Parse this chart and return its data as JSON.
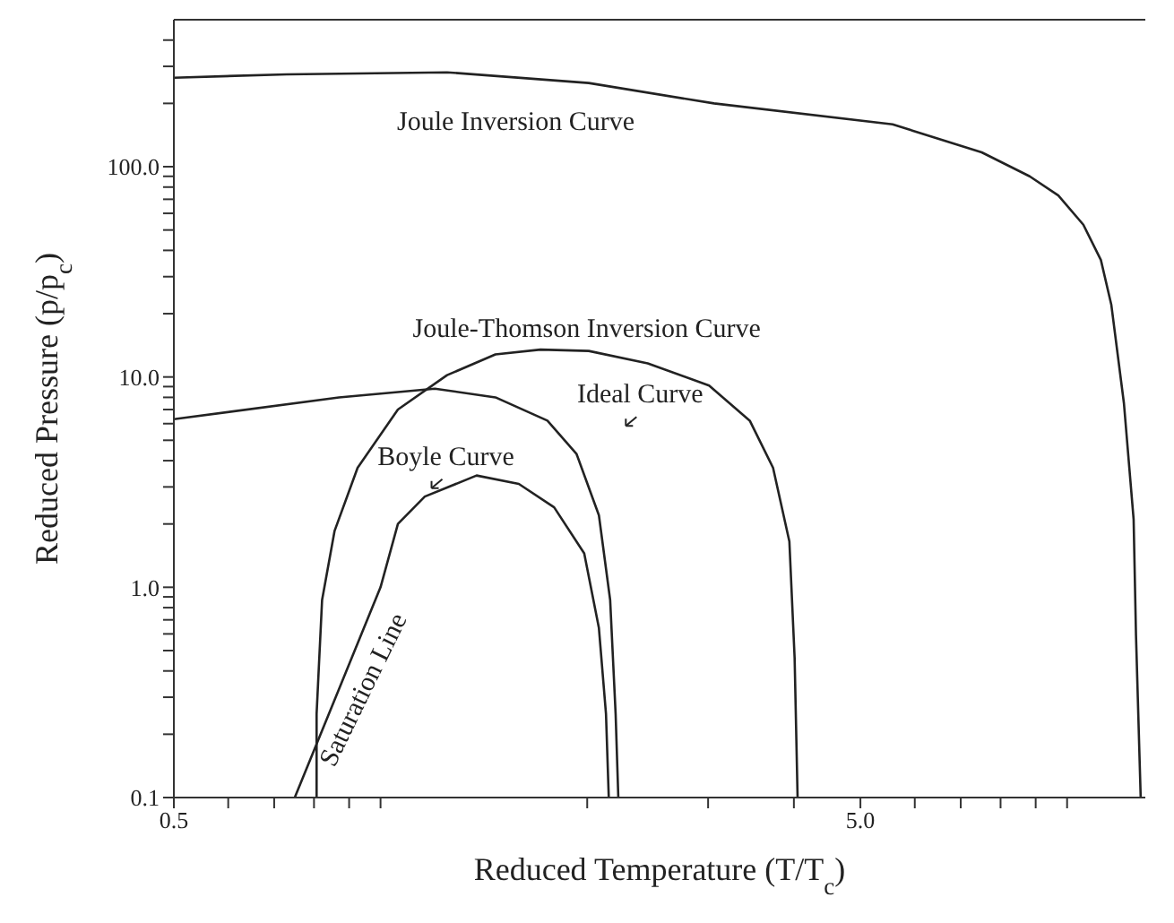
{
  "chart_data": {
    "type": "line",
    "xlabel": "Reduced Temperature (T/T$_{c}$)",
    "ylabel": "Reduced Pressure (p/p$_{c}$)",
    "log": "xy",
    "marker": "none",
    "line_style": "solid",
    "xlim": [
      0.5,
      13
    ],
    "ylim": [
      0.1,
      500
    ],
    "xticks": [
      {
        "value": 0.5,
        "label": "0.5"
      },
      {
        "value": 0.6,
        "label": null
      },
      {
        "value": 0.7,
        "label": null
      },
      {
        "value": 0.8,
        "label": null
      },
      {
        "value": 0.9,
        "label": null
      },
      {
        "value": 1,
        "label": null
      },
      {
        "value": 2,
        "label": null
      },
      {
        "value": 3,
        "label": null
      },
      {
        "value": 4,
        "label": null
      },
      {
        "value": 5,
        "label": "5.0"
      },
      {
        "value": 6,
        "label": null
      },
      {
        "value": 7,
        "label": null
      },
      {
        "value": 8,
        "label": null
      },
      {
        "value": 9,
        "label": null
      },
      {
        "value": 10,
        "label": null
      }
    ],
    "yticks": [
      {
        "value": 0.1,
        "label": "0.1"
      },
      {
        "value": 0.2,
        "label": null
      },
      {
        "value": 0.3,
        "label": null
      },
      {
        "value": 0.4,
        "label": null
      },
      {
        "value": 0.5,
        "label": null
      },
      {
        "value": 0.6,
        "label": null
      },
      {
        "value": 0.7,
        "label": null
      },
      {
        "value": 0.8,
        "label": null
      },
      {
        "value": 0.9,
        "label": null
      },
      {
        "value": 1,
        "label": "1.0"
      },
      {
        "value": 2,
        "label": null
      },
      {
        "value": 3,
        "label": null
      },
      {
        "value": 4,
        "label": null
      },
      {
        "value": 5,
        "label": null
      },
      {
        "value": 6,
        "label": null
      },
      {
        "value": 7,
        "label": null
      },
      {
        "value": 8,
        "label": null
      },
      {
        "value": 9,
        "label": null
      },
      {
        "value": 10,
        "label": "10.0"
      },
      {
        "value": 20,
        "label": null
      },
      {
        "value": 30,
        "label": null
      },
      {
        "value": 40,
        "label": null
      },
      {
        "value": 50,
        "label": null
      },
      {
        "value": 60,
        "label": null
      },
      {
        "value": 70,
        "label": null
      },
      {
        "value": 80,
        "label": null
      },
      {
        "value": 90,
        "label": null
      },
      {
        "value": 100,
        "label": "100.0"
      },
      {
        "value": 200,
        "label": null
      },
      {
        "value": 300,
        "label": null
      },
      {
        "value": 400,
        "label": null
      }
    ],
    "series": [
      {
        "color": "#222222",
        "x": [
          0.5,
          0.73,
          1.25,
          2.01,
          3.06,
          5.57,
          7.51,
          8.82,
          9.71,
          10.56,
          11.2,
          11.6,
          12.1,
          12.5,
          12.6,
          12.8
        ],
        "values": [
          265,
          275,
          281,
          250,
          200,
          159,
          117,
          90,
          73,
          53,
          36,
          22,
          7.5,
          2.1,
          0.59,
          0.1
        ]
      },
      {
        "color": "#222222",
        "x": [
          0.807,
          0.807,
          0.822,
          0.857,
          0.926,
          1.06,
          1.25,
          1.47,
          1.71,
          2.01,
          2.45,
          3.01,
          3.45,
          3.73,
          3.94,
          4.01,
          4.05
        ],
        "values": [
          0.1,
          0.25,
          0.87,
          1.85,
          3.7,
          7.0,
          10.2,
          12.8,
          13.5,
          13.3,
          11.6,
          9.1,
          6.2,
          3.7,
          1.65,
          0.46,
          0.1
        ]
      },
      {
        "color": "#222222",
        "x": [
          0.5,
          0.87,
          1.2,
          1.47,
          1.75,
          1.93,
          2.08,
          2.16,
          2.2,
          2.22
        ],
        "values": [
          6.3,
          8.0,
          8.8,
          8.0,
          6.2,
          4.3,
          2.2,
          0.87,
          0.25,
          0.1
        ]
      },
      {
        "color": "#222222",
        "x": [
          0.75,
          1.0,
          1.06,
          1.16,
          1.38,
          1.59,
          1.79,
          1.98,
          2.08,
          2.13,
          2.15
        ],
        "values": [
          0.1,
          1.0,
          2.0,
          2.7,
          3.4,
          3.1,
          2.4,
          1.45,
          0.64,
          0.25,
          0.1
        ]
      }
    ],
    "annotations": [
      "Joule Inversion Curve",
      "Joule-Thomson Inversion Curve",
      "Ideal Curve",
      "Boyle Curve",
      "Saturation Line"
    ]
  }
}
